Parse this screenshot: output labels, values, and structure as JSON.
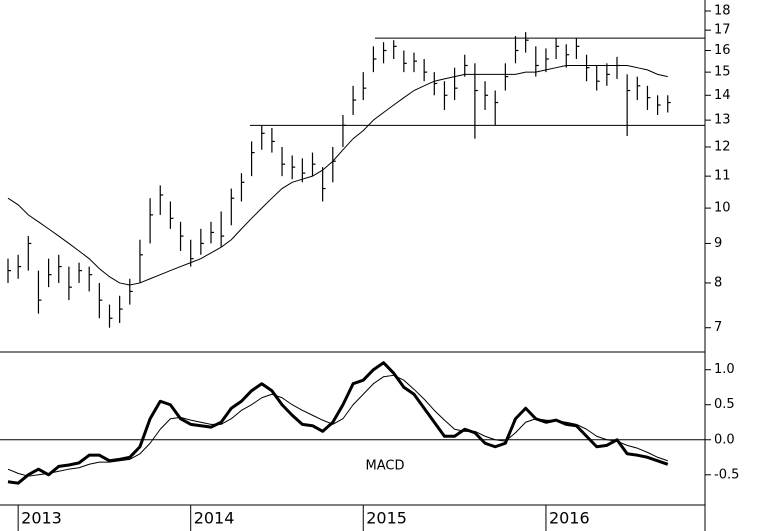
{
  "chart_data": [
    {
      "type": "ohlc",
      "categories": [
        null,
        "2013",
        null,
        null,
        null,
        null,
        null,
        null,
        null,
        null,
        null,
        null,
        null,
        null,
        null,
        null,
        null,
        null,
        "2014",
        null,
        null,
        null,
        null,
        null,
        null,
        null,
        null,
        null,
        null,
        null,
        null,
        null,
        null,
        null,
        null,
        "2015",
        null,
        null,
        null,
        null,
        null,
        null,
        null,
        null,
        null,
        null,
        null,
        null,
        null,
        null,
        null,
        null,
        null,
        "2016",
        null,
        null,
        null,
        null,
        null,
        null,
        null,
        null,
        null,
        null,
        null,
        null
      ],
      "high": [
        8.6,
        8.7,
        9.2,
        8.3,
        8.6,
        8.7,
        8.4,
        8.5,
        8.4,
        8.0,
        7.5,
        7.7,
        8.1,
        9.1,
        10.3,
        10.7,
        10.2,
        9.6,
        9.1,
        9.4,
        9.6,
        9.9,
        10.6,
        11.1,
        12.2,
        12.8,
        12.7,
        12.0,
        11.7,
        11.6,
        11.8,
        11.3,
        12.0,
        13.2,
        14.4,
        15.0,
        16.2,
        16.4,
        16.5,
        16.0,
        15.9,
        15.6,
        15.0,
        14.6,
        15.2,
        15.8,
        15.4,
        14.6,
        14.2,
        15.4,
        16.7,
        16.9,
        16.2,
        16.1,
        16.6,
        16.3,
        16.6,
        15.8,
        15.3,
        15.4,
        15.7,
        14.9,
        14.8,
        14.4,
        14.0,
        14.0
      ],
      "low": [
        8.0,
        8.1,
        8.3,
        7.3,
        7.9,
        8.0,
        7.6,
        8.0,
        7.8,
        7.2,
        7.0,
        7.1,
        7.5,
        8.0,
        9.0,
        9.8,
        9.4,
        8.8,
        8.4,
        8.7,
        9.0,
        8.9,
        9.5,
        10.2,
        11.0,
        11.9,
        11.8,
        11.0,
        10.9,
        10.8,
        11.0,
        10.2,
        10.8,
        12.0,
        13.2,
        13.8,
        15.0,
        15.4,
        15.6,
        15.0,
        15.0,
        14.6,
        14.0,
        13.4,
        13.8,
        14.8,
        12.3,
        13.4,
        12.8,
        14.2,
        15.4,
        15.9,
        14.8,
        15.0,
        15.6,
        15.2,
        15.6,
        14.6,
        14.2,
        14.4,
        14.7,
        12.4,
        13.8,
        13.4,
        13.2,
        13.3
      ],
      "close": [
        8.3,
        8.4,
        9.0,
        7.6,
        8.2,
        8.4,
        7.9,
        8.3,
        8.2,
        7.6,
        7.2,
        7.4,
        7.8,
        8.7,
        9.8,
        10.4,
        9.7,
        9.2,
        8.6,
        9.0,
        9.3,
        9.2,
        10.3,
        10.8,
        11.8,
        12.5,
        12.2,
        11.4,
        11.3,
        11.1,
        11.4,
        10.6,
        11.5,
        12.8,
        13.8,
        14.3,
        15.6,
        16.0,
        16.2,
        15.4,
        15.5,
        15.0,
        14.5,
        14.0,
        14.3,
        15.3,
        14.2,
        14.0,
        13.7,
        14.8,
        16.0,
        16.5,
        15.3,
        15.6,
        16.2,
        15.8,
        16.2,
        15.2,
        14.6,
        14.9,
        15.3,
        14.2,
        14.4,
        13.9,
        13.6,
        13.7
      ],
      "moving_average": [
        10.3,
        10.1,
        9.8,
        9.6,
        9.4,
        9.2,
        9.0,
        8.8,
        8.6,
        8.35,
        8.15,
        8.0,
        7.95,
        8.0,
        8.1,
        8.2,
        8.3,
        8.4,
        8.5,
        8.6,
        8.75,
        8.9,
        9.1,
        9.4,
        9.7,
        10.0,
        10.3,
        10.6,
        10.8,
        10.9,
        11.0,
        11.2,
        11.5,
        11.9,
        12.3,
        12.6,
        13.0,
        13.3,
        13.6,
        13.9,
        14.2,
        14.4,
        14.6,
        14.7,
        14.8,
        14.9,
        14.9,
        14.9,
        14.9,
        14.9,
        14.9,
        15.0,
        15.0,
        15.1,
        15.2,
        15.3,
        15.3,
        15.3,
        15.3,
        15.3,
        15.3,
        15.3,
        15.2,
        15.1,
        14.9,
        14.8
      ],
      "levels": [
        16.6,
        12.8
      ],
      "color": "#000000",
      "log_scale": true,
      "ylim": [
        6.55,
        18.6
      ],
      "yticks": [
        7,
        8,
        9,
        10,
        11,
        12,
        13,
        14,
        15,
        16,
        17,
        18
      ]
    },
    {
      "type": "line",
      "title": "MACD",
      "series": [
        {
          "values": [
            -0.6,
            -0.62,
            -0.5,
            -0.42,
            -0.5,
            -0.38,
            -0.36,
            -0.33,
            -0.22,
            -0.22,
            -0.3,
            -0.28,
            -0.25,
            -0.1,
            0.3,
            0.55,
            0.5,
            0.3,
            0.22,
            0.2,
            0.18,
            0.25,
            0.45,
            0.55,
            0.7,
            0.8,
            0.7,
            0.5,
            0.35,
            0.22,
            0.2,
            0.12,
            0.25,
            0.5,
            0.8,
            0.85,
            1.0,
            1.1,
            0.95,
            0.75,
            0.65,
            0.45,
            0.25,
            0.05,
            0.05,
            0.15,
            0.1,
            -0.05,
            -0.1,
            -0.05,
            0.3,
            0.45,
            0.3,
            0.25,
            0.28,
            0.22,
            0.2,
            0.05,
            -0.1,
            -0.08,
            0.0,
            -0.2,
            -0.22,
            -0.25,
            -0.3,
            -0.35
          ],
          "color": "#000000",
          "line_width": 3
        },
        {
          "values": [
            -0.42,
            -0.48,
            -0.52,
            -0.5,
            -0.48,
            -0.45,
            -0.42,
            -0.4,
            -0.35,
            -0.32,
            -0.32,
            -0.3,
            -0.28,
            -0.2,
            -0.05,
            0.15,
            0.3,
            0.32,
            0.28,
            0.25,
            0.22,
            0.22,
            0.3,
            0.42,
            0.5,
            0.6,
            0.65,
            0.6,
            0.5,
            0.42,
            0.35,
            0.28,
            0.22,
            0.3,
            0.5,
            0.65,
            0.8,
            0.9,
            0.92,
            0.85,
            0.72,
            0.58,
            0.42,
            0.28,
            0.15,
            0.12,
            0.12,
            0.05,
            0.0,
            -0.02,
            0.1,
            0.25,
            0.3,
            0.28,
            0.27,
            0.25,
            0.22,
            0.15,
            0.05,
            0.0,
            -0.02,
            -0.08,
            -0.12,
            -0.18,
            -0.25,
            -0.3
          ],
          "color": "#000000",
          "line_width": 1
        }
      ],
      "zero_line": true,
      "ylim": [
        -0.86,
        1.21
      ],
      "yticks": [
        -0.5,
        {
          "value": 0,
          "label": "0.0"
        },
        0.5,
        {
          "value": 1,
          "label": "1.0"
        }
      ]
    }
  ]
}
